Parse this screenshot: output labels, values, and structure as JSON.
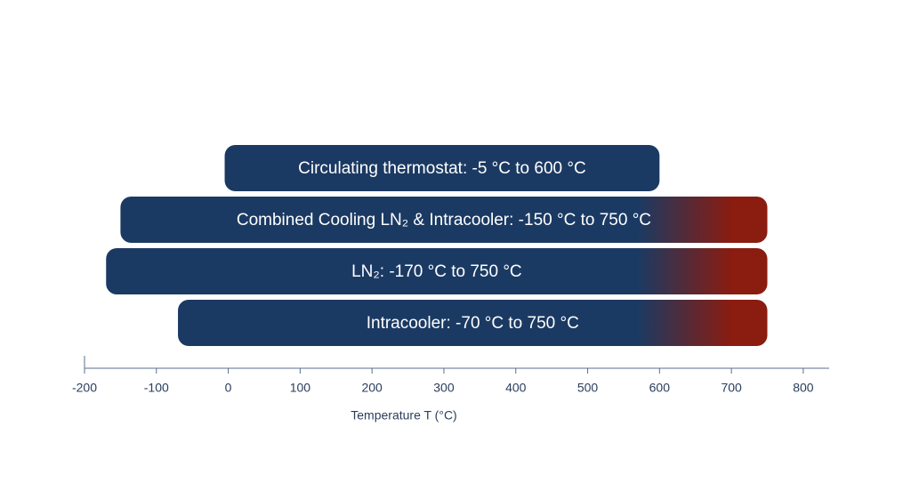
{
  "chart_data": {
    "type": "range",
    "x_label": "Temperature T (°C)",
    "xlim": [
      -200,
      836
    ],
    "xticks": [
      -200,
      -100,
      0,
      100,
      200,
      300,
      400,
      500,
      600,
      700,
      800
    ],
    "bars": [
      {
        "label": "Circulating thermostat: -5 °C to 600 °C",
        "start": -5,
        "end": 600,
        "colors": [
          "#1b3a63"
        ]
      },
      {
        "label": "Combined Cooling LN₂ & Intracooler: -150 °C to 750 °C",
        "start": -150,
        "end": 750,
        "colors": [
          "#1b3a63",
          "#8a1c10"
        ]
      },
      {
        "label": "LN₂: -170 °C to 750 °C",
        "start": -170,
        "end": 750,
        "colors": [
          "#1b3a63",
          "#8a1c10"
        ]
      },
      {
        "label": "Intracooler: -70 °C to 750 °C",
        "start": -70,
        "end": 750,
        "colors": [
          "#1b3a63",
          "#8a1c10"
        ]
      }
    ]
  }
}
